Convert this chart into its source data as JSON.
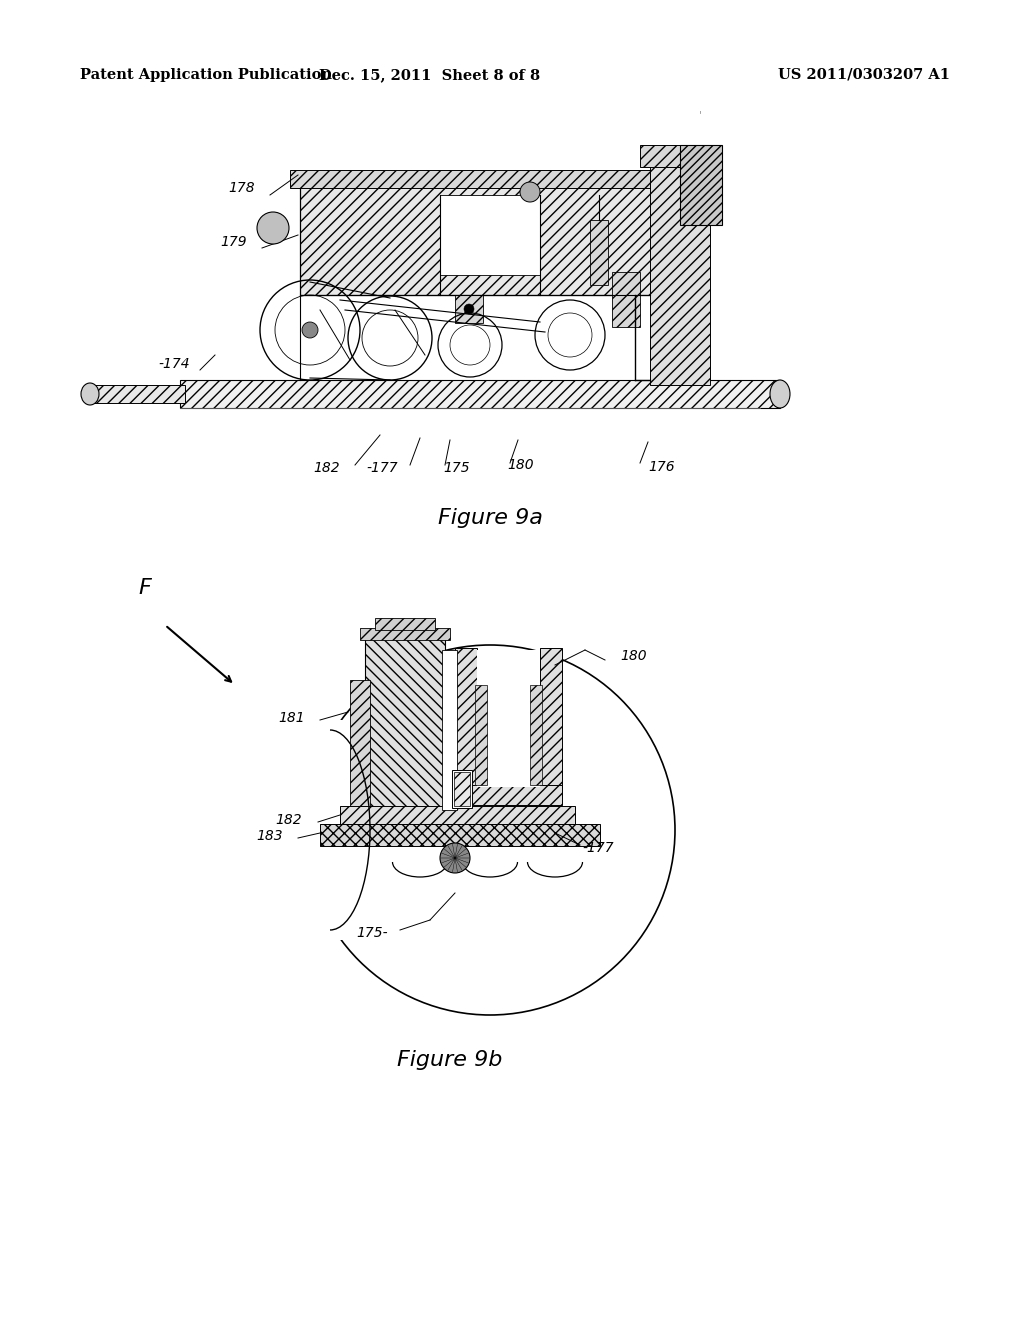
{
  "background_color": "#ffffff",
  "page_width": 10.24,
  "page_height": 13.2,
  "header_text_left": "Patent Application Publication",
  "header_text_mid": "Dec. 15, 2011  Sheet 8 of 8",
  "header_text_right": "US 2011/0303207 A1",
  "fig9a_caption": "Figure 9a",
  "fig9b_caption": "Figure 9b"
}
